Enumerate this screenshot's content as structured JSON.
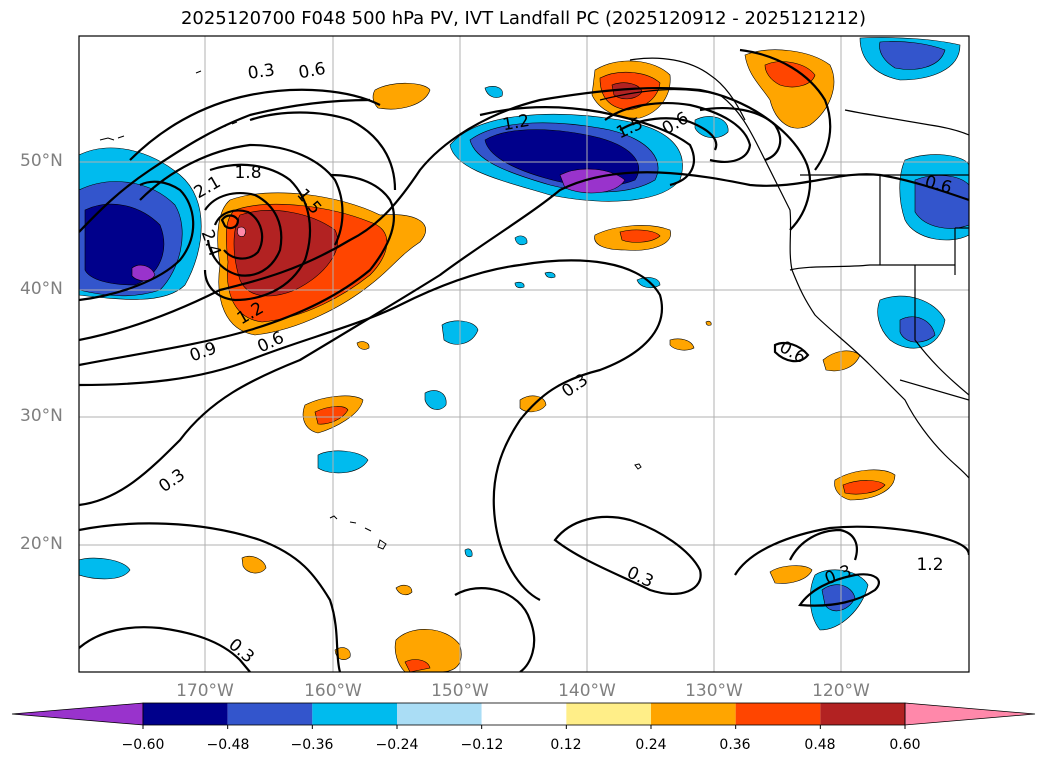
{
  "title": "2025120700 F048 500 hPa PV, IVT Landfall PC (2025120912 - 2025121212)",
  "lat_labels": [
    "50°N",
    "40°N",
    "30°N",
    "20°N"
  ],
  "lon_labels": [
    "170°W",
    "160°W",
    "150°W",
    "140°W",
    "130°W",
    "120°W"
  ],
  "contour_labels": [
    "0.3",
    "0.6",
    "0.9",
    "1.2",
    "1.5",
    "1.8",
    "2.1",
    "2.4",
    "0.3",
    "0.6",
    "0.3",
    "0.3",
    "0.3",
    "0.6",
    "0.3",
    "1.2",
    "1.2",
    "1.5",
    "0.6",
    "0.6"
  ],
  "colorbar": {
    "ticks": [
      "−0.60",
      "−0.48",
      "−0.36",
      "−0.24",
      "−0.12",
      "0.12",
      "0.24",
      "0.36",
      "0.48",
      "0.60"
    ],
    "colors": [
      "#9933cc",
      "#00008b",
      "#3355cc",
      "#00bbee",
      "#aaddf5",
      "#ffffff",
      "#ffee88",
      "#ffa500",
      "#ff4500",
      "#b22222",
      "#ff88aa",
      "#ff88aa"
    ]
  }
}
